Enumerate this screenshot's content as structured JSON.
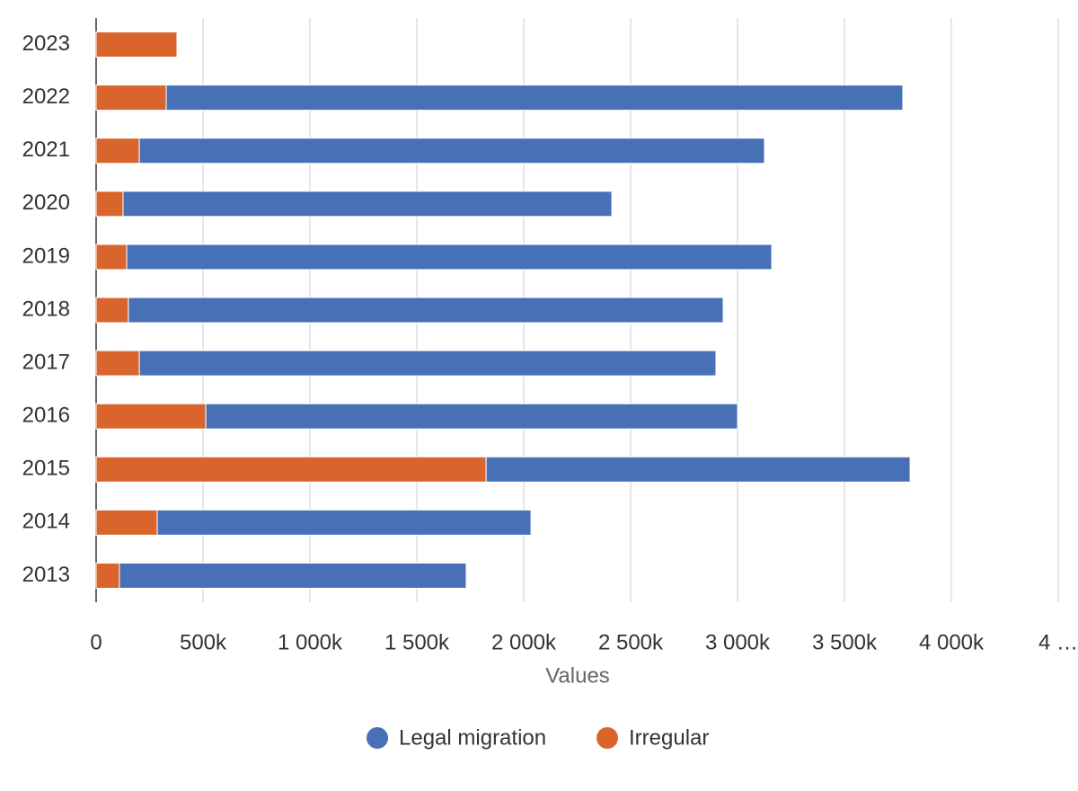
{
  "chart_data": {
    "type": "stacked-bar-horizontal",
    "categories": [
      "2023",
      "2022",
      "2021",
      "2020",
      "2019",
      "2018",
      "2017",
      "2016",
      "2015",
      "2014",
      "2013"
    ],
    "series": [
      {
        "name": "Legal migration",
        "color": "#4770b6",
        "values": [
          null,
          3445000,
          2924000,
          2286000,
          3017000,
          2782000,
          2697000,
          2487000,
          1983000,
          1748000,
          1622000
        ]
      },
      {
        "name": "Irregular",
        "color": "#d9652d",
        "values": [
          378000,
          328000,
          202000,
          126000,
          143000,
          151000,
          202000,
          513000,
          1824000,
          286000,
          109000
        ]
      }
    ],
    "xlabel": "Values",
    "xlim": [
      0,
      4500000
    ],
    "xticks": [
      0,
      {
        "value": 500000,
        "label": "500k"
      },
      {
        "value": 1000000,
        "label": "1 000k"
      },
      {
        "value": 1500000,
        "label": "1 500k"
      },
      {
        "value": 2000000,
        "label": "2 000k"
      },
      {
        "value": 2500000,
        "label": "2 500k"
      },
      {
        "value": 3000000,
        "label": "3 000k"
      },
      {
        "value": 3500000,
        "label": "3 500k"
      },
      {
        "value": 4000000,
        "label": "4 000k"
      },
      {
        "value": 4500000,
        "label": "4 …"
      }
    ],
    "grid": true,
    "legend": "bottom"
  }
}
